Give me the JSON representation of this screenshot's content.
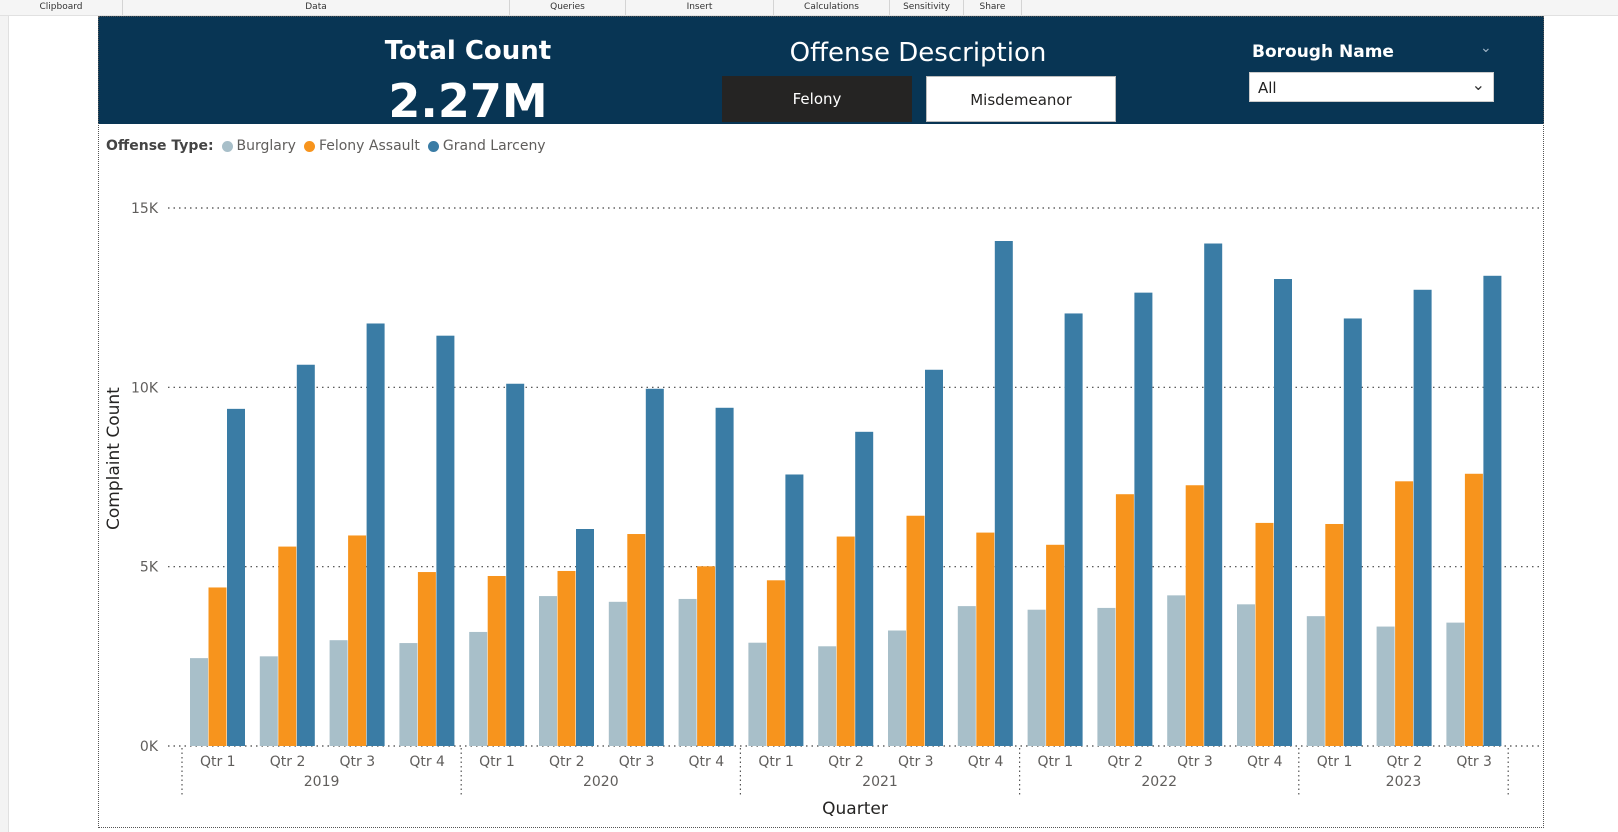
{
  "ribbon": {
    "groups": [
      "Clipboard",
      "Data",
      "Queries",
      "Insert",
      "Calculations",
      "Sensitivity",
      "Share"
    ]
  },
  "header": {
    "total_title": "Total Count",
    "total_value": "2.27M",
    "offense_title": "Offense Description",
    "buttons": {
      "felony": "Felony",
      "misdemeanor": "Misdemeanor"
    },
    "selected_button": "Felony",
    "borough_title": "Borough Name",
    "borough_value": "All"
  },
  "colors": {
    "header_bg": "#083554",
    "burglary": "#a8bfc9",
    "felony_assault": "#f7941d",
    "grand_larceny": "#3a7ca5"
  },
  "legend": {
    "title": "Offense Type:",
    "items": [
      "Burglary",
      "Felony Assault",
      "Grand Larceny"
    ]
  },
  "chart_data": {
    "type": "bar",
    "ylabel": "Complaint Count",
    "xlabel": "Quarter",
    "ylim": [
      0,
      15000
    ],
    "yticks": [
      "0K",
      "5K",
      "10K",
      "15K"
    ],
    "years": [
      "2019",
      "2020",
      "2021",
      "2022",
      "2023"
    ],
    "categories": [
      "Qtr 1",
      "Qtr 2",
      "Qtr 3",
      "Qtr 4",
      "Qtr 1",
      "Qtr 2",
      "Qtr 3",
      "Qtr 4",
      "Qtr 1",
      "Qtr 2",
      "Qtr 3",
      "Qtr 4",
      "Qtr 1",
      "Qtr 2",
      "Qtr 3",
      "Qtr 4",
      "Qtr 1",
      "Qtr 2",
      "Qtr 3"
    ],
    "grid": true,
    "legend_position": "top-left",
    "series": [
      {
        "name": "Burglary",
        "values": [
          2450,
          2500,
          2950,
          2870,
          3180,
          4180,
          4020,
          4100,
          2880,
          2780,
          3220,
          3900,
          3800,
          3850,
          4200,
          3950,
          3620,
          3330,
          3440
        ]
      },
      {
        "name": "Felony Assault",
        "values": [
          4420,
          5560,
          5870,
          4850,
          4740,
          4880,
          5910,
          5010,
          4620,
          5840,
          6420,
          5950,
          5610,
          7020,
          7270,
          6220,
          6190,
          7380,
          7590
        ]
      },
      {
        "name": "Grand Larceny",
        "values": [
          9400,
          10630,
          11780,
          11440,
          10100,
          6050,
          9960,
          9430,
          7570,
          8760,
          10490,
          14080,
          12060,
          12640,
          14010,
          13020,
          11920,
          12720,
          13110
        ]
      }
    ]
  }
}
